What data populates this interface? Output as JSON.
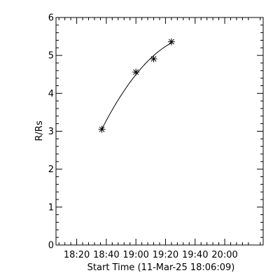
{
  "chart_data": {
    "type": "scatter",
    "xlabel": "Start Time (11-Mar-25 18:06:09)",
    "ylabel": "R/Rs",
    "xlim": [
      "18:06",
      "20:26"
    ],
    "ylim": [
      0,
      6
    ],
    "xticks": [
      "18:20",
      "18:40",
      "19:00",
      "19:20",
      "19:40",
      "20:00"
    ],
    "yticks": [
      "0",
      "1",
      "2",
      "3",
      "4",
      "5",
      "6"
    ],
    "grid": false,
    "marker": "asterisk",
    "points": [
      {
        "x": "18:37",
        "y": 3.05
      },
      {
        "x": "19:00",
        "y": 4.56
      },
      {
        "x": "19:12",
        "y": 4.91
      },
      {
        "x": "19:24",
        "y": 5.36
      }
    ],
    "fit_curve": {
      "type": "quadratic",
      "x_start": "18:37",
      "x_end": "19:24"
    }
  }
}
